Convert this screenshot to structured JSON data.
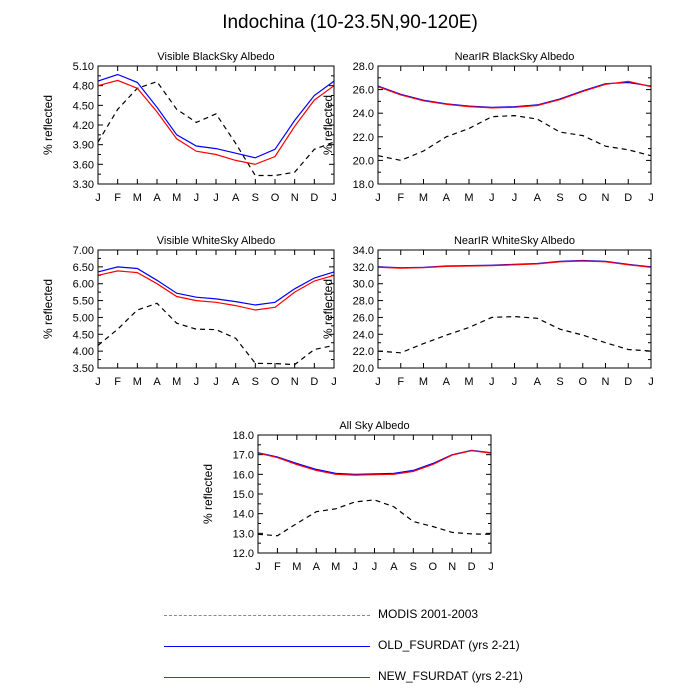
{
  "figure_title": "Indochina (10-23.5N,90-120E)",
  "chart_data": [
    {
      "type": "line",
      "title": "Visible BlackSky Albedo",
      "ylabel": "% reflected",
      "categories": [
        "J",
        "F",
        "M",
        "A",
        "M",
        "J",
        "J",
        "A",
        "S",
        "O",
        "N",
        "D",
        "J"
      ],
      "ylim": [
        3.3,
        5.1
      ],
      "yticks": [
        "3.30",
        "3.60",
        "3.90",
        "4.20",
        "4.50",
        "4.80",
        "5.10"
      ],
      "series": [
        {
          "name": "MODIS 2001-2003",
          "values": [
            3.94,
            4.44,
            4.76,
            4.86,
            4.44,
            4.24,
            4.37,
            3.92,
            3.43,
            3.43,
            3.48,
            3.83,
            3.94
          ]
        },
        {
          "name": "OLD_FSURDAT (yrs 2-21)",
          "values": [
            4.87,
            4.97,
            4.85,
            4.47,
            4.05,
            3.88,
            3.84,
            3.77,
            3.7,
            3.83,
            4.27,
            4.65,
            4.87
          ]
        },
        {
          "name": "NEW_FSURDAT (yrs 2-21)",
          "values": [
            4.8,
            4.88,
            4.76,
            4.4,
            3.99,
            3.8,
            3.75,
            3.66,
            3.6,
            3.72,
            4.18,
            4.58,
            4.8
          ]
        }
      ]
    },
    {
      "type": "line",
      "title": "NearIR BlackSky Albedo",
      "ylabel": "% reflected",
      "categories": [
        "J",
        "F",
        "M",
        "A",
        "M",
        "J",
        "J",
        "A",
        "S",
        "O",
        "N",
        "D",
        "J"
      ],
      "ylim": [
        18.0,
        28.0
      ],
      "yticks": [
        "18.0",
        "20.0",
        "22.0",
        "24.0",
        "26.0",
        "28.0"
      ],
      "series": [
        {
          "name": "MODIS 2001-2003",
          "values": [
            20.4,
            20.0,
            20.8,
            22.0,
            22.7,
            23.7,
            23.8,
            23.5,
            22.4,
            22.1,
            21.2,
            20.9,
            20.4
          ]
        },
        {
          "name": "OLD_FSURDAT (yrs 2-21)",
          "values": [
            26.3,
            25.6,
            25.1,
            24.8,
            24.6,
            24.5,
            24.55,
            24.7,
            25.2,
            25.9,
            26.5,
            26.6,
            26.3
          ]
        },
        {
          "name": "NEW_FSURDAT (yrs 2-21)",
          "values": [
            26.25,
            25.55,
            25.05,
            24.75,
            24.55,
            24.45,
            24.5,
            24.65,
            25.15,
            25.85,
            26.45,
            26.7,
            26.25
          ]
        }
      ]
    },
    {
      "type": "line",
      "title": "Visible WhiteSky Albedo",
      "ylabel": "% reflected",
      "categories": [
        "J",
        "F",
        "M",
        "A",
        "M",
        "J",
        "J",
        "A",
        "S",
        "O",
        "N",
        "D",
        "J"
      ],
      "ylim": [
        3.5,
        7.0
      ],
      "yticks": [
        "3.50",
        "4.00",
        "4.50",
        "5.00",
        "5.50",
        "6.00",
        "6.50",
        "7.00"
      ],
      "series": [
        {
          "name": "MODIS 2001-2003",
          "values": [
            4.17,
            4.65,
            5.22,
            5.42,
            4.83,
            4.65,
            4.64,
            4.38,
            3.64,
            3.63,
            3.6,
            4.05,
            4.17
          ]
        },
        {
          "name": "OLD_FSURDAT (yrs 2-21)",
          "values": [
            6.35,
            6.5,
            6.45,
            6.1,
            5.72,
            5.6,
            5.55,
            5.47,
            5.37,
            5.45,
            5.85,
            6.17,
            6.35
          ]
        },
        {
          "name": "NEW_FSURDAT (yrs 2-21)",
          "values": [
            6.25,
            6.38,
            6.33,
            6.0,
            5.62,
            5.5,
            5.45,
            5.35,
            5.22,
            5.3,
            5.75,
            6.08,
            6.25
          ]
        }
      ]
    },
    {
      "type": "line",
      "title": "NearIR WhiteSky Albedo",
      "ylabel": "% reflected",
      "categories": [
        "J",
        "F",
        "M",
        "A",
        "M",
        "J",
        "J",
        "A",
        "S",
        "O",
        "N",
        "D",
        "J"
      ],
      "ylim": [
        20.0,
        34.0
      ],
      "yticks": [
        "20.0",
        "22.0",
        "24.0",
        "26.0",
        "28.0",
        "30.0",
        "32.0",
        "34.0"
      ],
      "series": [
        {
          "name": "MODIS 2001-2003",
          "values": [
            22.0,
            21.8,
            22.9,
            23.9,
            24.8,
            26.0,
            26.1,
            25.9,
            24.6,
            23.9,
            23.0,
            22.2,
            22.0
          ]
        },
        {
          "name": "OLD_FSURDAT (yrs 2-21)",
          "values": [
            32.0,
            31.9,
            31.95,
            32.1,
            32.15,
            32.2,
            32.3,
            32.4,
            32.65,
            32.75,
            32.65,
            32.3,
            32.0
          ]
        },
        {
          "name": "NEW_FSURDAT (yrs 2-21)",
          "values": [
            31.95,
            31.85,
            31.9,
            32.05,
            32.1,
            32.15,
            32.25,
            32.35,
            32.6,
            32.7,
            32.6,
            32.25,
            31.95
          ]
        }
      ]
    },
    {
      "type": "line",
      "title": "All Sky Albedo",
      "ylabel": "% reflected",
      "categories": [
        "J",
        "F",
        "M",
        "A",
        "M",
        "J",
        "J",
        "A",
        "S",
        "O",
        "N",
        "D",
        "J"
      ],
      "ylim": [
        12.0,
        18.0
      ],
      "yticks": [
        "12.0",
        "13.0",
        "14.0",
        "15.0",
        "16.0",
        "17.0",
        "18.0"
      ],
      "series": [
        {
          "name": "MODIS 2001-2003",
          "values": [
            12.95,
            12.88,
            13.5,
            14.1,
            14.25,
            14.6,
            14.7,
            14.35,
            13.6,
            13.35,
            13.05,
            12.97,
            12.95
          ]
        },
        {
          "name": "OLD_FSURDAT (yrs 2-21)",
          "values": [
            17.1,
            16.88,
            16.55,
            16.25,
            16.05,
            16.0,
            16.02,
            16.05,
            16.2,
            16.55,
            17.0,
            17.22,
            17.1
          ]
        },
        {
          "name": "NEW_FSURDAT (yrs 2-21)",
          "values": [
            17.08,
            16.85,
            16.5,
            16.2,
            16.0,
            15.96,
            15.98,
            16.0,
            16.15,
            16.5,
            16.98,
            17.2,
            17.08
          ]
        }
      ]
    }
  ],
  "legend": [
    {
      "label": "MODIS 2001-2003",
      "color": "#000000",
      "style": "dashed"
    },
    {
      "label": "OLD_FSURDAT (yrs 2-21)",
      "color": "#0000ff",
      "style": "solid"
    },
    {
      "label": "NEW_FSURDAT (yrs 2-21)",
      "color": "#ff0000",
      "style": "solid"
    }
  ]
}
